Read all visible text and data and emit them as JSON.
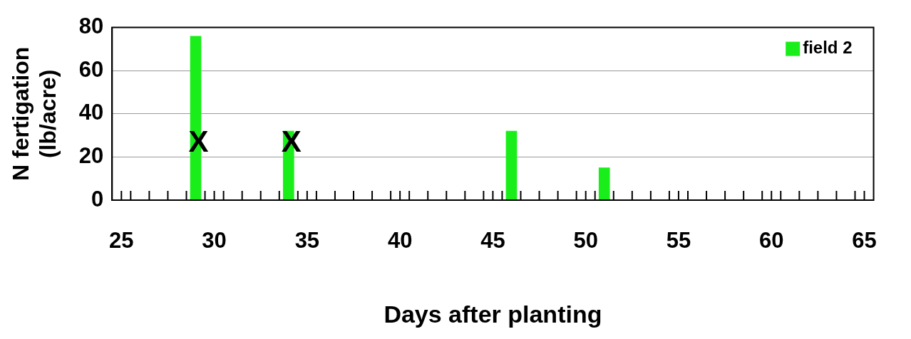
{
  "chart_data": {
    "type": "bar",
    "xlabel": "Days after planting",
    "ylabel": "N fertigation\n(lb/acre)",
    "x": [
      29,
      34,
      46,
      51
    ],
    "series": [
      {
        "name": "field 2",
        "color": "#1aee1a",
        "values": [
          76,
          32,
          32,
          15
        ]
      }
    ],
    "xlim": [
      24.5,
      65.5
    ],
    "xticks": [
      25,
      {
        "value": 25.5,
        "label": null
      },
      {
        "value": 26.5,
        "label": null
      },
      {
        "value": 27.5,
        "label": null
      },
      {
        "value": 28.5,
        "label": null
      },
      {
        "value": 29.5,
        "label": null
      },
      30,
      {
        "value": 30.5,
        "label": null
      },
      {
        "value": 31.5,
        "label": null
      },
      {
        "value": 32.5,
        "label": null
      },
      {
        "value": 33.5,
        "label": null
      },
      {
        "value": 34.5,
        "label": null
      },
      35,
      {
        "value": 35.5,
        "label": null
      },
      {
        "value": 36.5,
        "label": null
      },
      {
        "value": 37.5,
        "label": null
      },
      {
        "value": 38.5,
        "label": null
      },
      {
        "value": 39.5,
        "label": null
      },
      40,
      {
        "value": 40.5,
        "label": null
      },
      {
        "value": 41.5,
        "label": null
      },
      {
        "value": 42.5,
        "label": null
      },
      {
        "value": 43.5,
        "label": null
      },
      {
        "value": 44.5,
        "label": null
      },
      45,
      {
        "value": 45.5,
        "label": null
      },
      {
        "value": 46.5,
        "label": null
      },
      {
        "value": 47.5,
        "label": null
      },
      {
        "value": 48.5,
        "label": null
      },
      {
        "value": 49.5,
        "label": null
      },
      50,
      {
        "value": 50.5,
        "label": null
      },
      {
        "value": 51.5,
        "label": null
      },
      {
        "value": 52.5,
        "label": null
      },
      {
        "value": 53.5,
        "label": null
      },
      {
        "value": 54.5,
        "label": null
      },
      55,
      {
        "value": 55.5,
        "label": null
      },
      {
        "value": 56.5,
        "label": null
      },
      {
        "value": 57.5,
        "label": null
      },
      {
        "value": 58.5,
        "label": null
      },
      {
        "value": 59.5,
        "label": null
      },
      60,
      {
        "value": 60.5,
        "label": null
      },
      {
        "value": 61.5,
        "label": null
      },
      {
        "value": 62.5,
        "label": null
      },
      {
        "value": 63.5,
        "label": null
      },
      {
        "value": 64.5,
        "label": null
      },
      65
    ],
    "ylim": [
      0,
      80
    ],
    "yticks": [
      0,
      20,
      40,
      60,
      80
    ],
    "grid": "y",
    "legend": "top right",
    "annotations": [
      "X",
      "X"
    ]
  }
}
